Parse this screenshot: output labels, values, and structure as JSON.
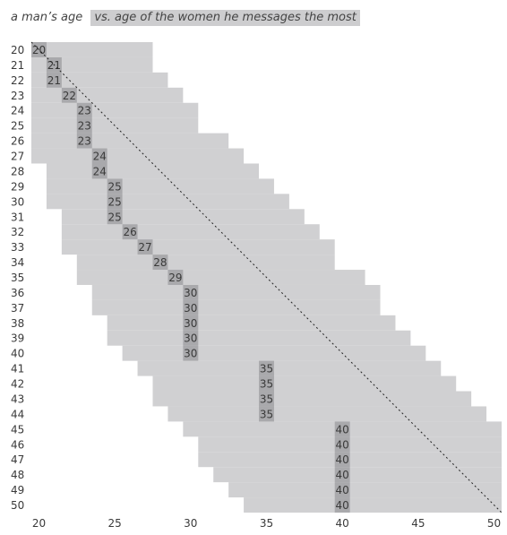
{
  "header": {
    "title_plain": "a man’s age",
    "title_highlight": "vs. age of the women he messages the most"
  },
  "colors": {
    "range_fill": "#d0d0d2",
    "mode_fill": "#a9a9ac",
    "diagonal": "#222222",
    "text": "#3a3a3a"
  },
  "chart_data": {
    "type": "heatmap",
    "title": "a man’s age vs. age of the women he messages the most",
    "x_axis": {
      "ticks": [
        20,
        25,
        30,
        35,
        40,
        45,
        50
      ],
      "range": [
        20,
        50
      ]
    },
    "y_axis": {
      "ticks": [
        20,
        21,
        22,
        23,
        24,
        25,
        26,
        27,
        28,
        29,
        30,
        31,
        32,
        33,
        34,
        35,
        36,
        37,
        38,
        39,
        40,
        41,
        42,
        43,
        44,
        45,
        46,
        47,
        48,
        49,
        50
      ],
      "range": [
        20,
        50
      ]
    },
    "rows": [
      {
        "man_age": 20,
        "range": [
          20,
          27
        ],
        "mode": 20
      },
      {
        "man_age": 21,
        "range": [
          20,
          27
        ],
        "mode": 21
      },
      {
        "man_age": 22,
        "range": [
          20,
          28
        ],
        "mode": 21
      },
      {
        "man_age": 23,
        "range": [
          20,
          29
        ],
        "mode": 22
      },
      {
        "man_age": 24,
        "range": [
          20,
          30
        ],
        "mode": 23
      },
      {
        "man_age": 25,
        "range": [
          20,
          30
        ],
        "mode": 23
      },
      {
        "man_age": 26,
        "range": [
          20,
          32
        ],
        "mode": 23
      },
      {
        "man_age": 27,
        "range": [
          20,
          33
        ],
        "mode": 24
      },
      {
        "man_age": 28,
        "range": [
          21,
          34
        ],
        "mode": 24
      },
      {
        "man_age": 29,
        "range": [
          21,
          35
        ],
        "mode": 25
      },
      {
        "man_age": 30,
        "range": [
          21,
          36
        ],
        "mode": 25
      },
      {
        "man_age": 31,
        "range": [
          22,
          37
        ],
        "mode": 25
      },
      {
        "man_age": 32,
        "range": [
          22,
          38
        ],
        "mode": 26
      },
      {
        "man_age": 33,
        "range": [
          22,
          39
        ],
        "mode": 27
      },
      {
        "man_age": 34,
        "range": [
          23,
          39
        ],
        "mode": 28
      },
      {
        "man_age": 35,
        "range": [
          23,
          41
        ],
        "mode": 29
      },
      {
        "man_age": 36,
        "range": [
          24,
          42
        ],
        "mode": 30
      },
      {
        "man_age": 37,
        "range": [
          24,
          42
        ],
        "mode": 30
      },
      {
        "man_age": 38,
        "range": [
          25,
          43
        ],
        "mode": 30
      },
      {
        "man_age": 39,
        "range": [
          25,
          44
        ],
        "mode": 30
      },
      {
        "man_age": 40,
        "range": [
          26,
          45
        ],
        "mode": 30
      },
      {
        "man_age": 41,
        "range": [
          27,
          46
        ],
        "mode": 35
      },
      {
        "man_age": 42,
        "range": [
          28,
          47
        ],
        "mode": 35
      },
      {
        "man_age": 43,
        "range": [
          28,
          48
        ],
        "mode": 35
      },
      {
        "man_age": 44,
        "range": [
          29,
          49
        ],
        "mode": 35
      },
      {
        "man_age": 45,
        "range": [
          30,
          50
        ],
        "mode": 40
      },
      {
        "man_age": 46,
        "range": [
          31,
          50
        ],
        "mode": 40
      },
      {
        "man_age": 47,
        "range": [
          31,
          50
        ],
        "mode": 40
      },
      {
        "man_age": 48,
        "range": [
          32,
          50
        ],
        "mode": 40
      },
      {
        "man_age": 49,
        "range": [
          33,
          50
        ],
        "mode": 40
      },
      {
        "man_age": 50,
        "range": [
          34,
          50
        ],
        "mode": 40
      }
    ],
    "reference_line": "y = x (dotted diagonal)"
  }
}
